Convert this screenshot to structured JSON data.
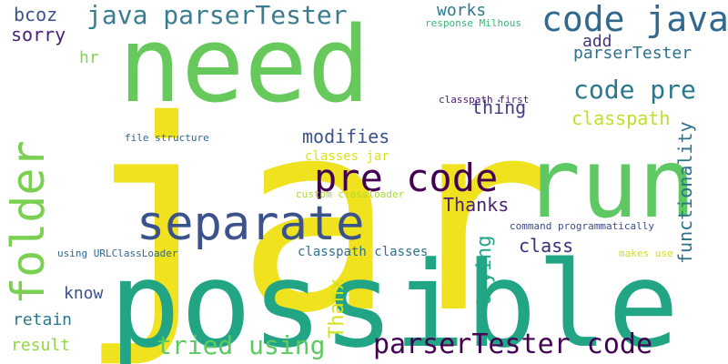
{
  "colors": {
    "background": "#ffffff"
  },
  "words": [
    {
      "text": "jar",
      "color": "#f0e21f"
    },
    {
      "text": "need",
      "color": "#67c95c"
    },
    {
      "text": "possible",
      "color": "#21a585"
    },
    {
      "text": "run",
      "color": "#5ec962"
    },
    {
      "text": "separate",
      "color": "#3b528b"
    },
    {
      "text": "folder",
      "color": "#7ad151"
    },
    {
      "text": "pre code",
      "color": "#440154"
    },
    {
      "text": "code java",
      "color": "#31688e"
    },
    {
      "text": "parserTester code",
      "color": "#440154"
    },
    {
      "text": "java parserTester",
      "color": "#3b7d8e"
    },
    {
      "text": "code pre",
      "color": "#2a788e"
    },
    {
      "text": "tried using",
      "color": "#5ec962"
    },
    {
      "text": "functionality",
      "color": "#2c728e"
    },
    {
      "text": "trying",
      "color": "#22a884"
    },
    {
      "text": "Thanx",
      "color": "#d4e21a"
    },
    {
      "text": "modifies",
      "color": "#3b528b"
    },
    {
      "text": "thing",
      "color": "#433e85"
    },
    {
      "text": "Thanks",
      "color": "#482173"
    },
    {
      "text": "class",
      "color": "#3b2f7b"
    },
    {
      "text": "classpath",
      "color": "#bddf26"
    },
    {
      "text": "parserTester",
      "color": "#2d708e"
    },
    {
      "text": "works",
      "color": "#2a788e"
    },
    {
      "text": "add",
      "color": "#46337e"
    },
    {
      "text": "bcoz",
      "color": "#3b528b"
    },
    {
      "text": "sorry",
      "color": "#482173"
    },
    {
      "text": "hr",
      "color": "#86d549"
    },
    {
      "text": "know",
      "color": "#3b528b"
    },
    {
      "text": "retain",
      "color": "#2a788e"
    },
    {
      "text": "result",
      "color": "#8fd744"
    },
    {
      "text": "classpath classes",
      "color": "#2c728e"
    },
    {
      "text": "classes jar",
      "color": "#d8e219"
    },
    {
      "text": "response Milhous",
      "color": "#35b779"
    },
    {
      "text": "classpath first",
      "color": "#481a6c"
    },
    {
      "text": "file structure",
      "color": "#31688e"
    },
    {
      "text": "custom classloader",
      "color": "#a8db34"
    },
    {
      "text": "command programmatically",
      "color": "#3e4a89"
    },
    {
      "text": "using URLClassLoader",
      "color": "#31688e"
    },
    {
      "text": "makes use",
      "color": "#d0e11c"
    }
  ]
}
